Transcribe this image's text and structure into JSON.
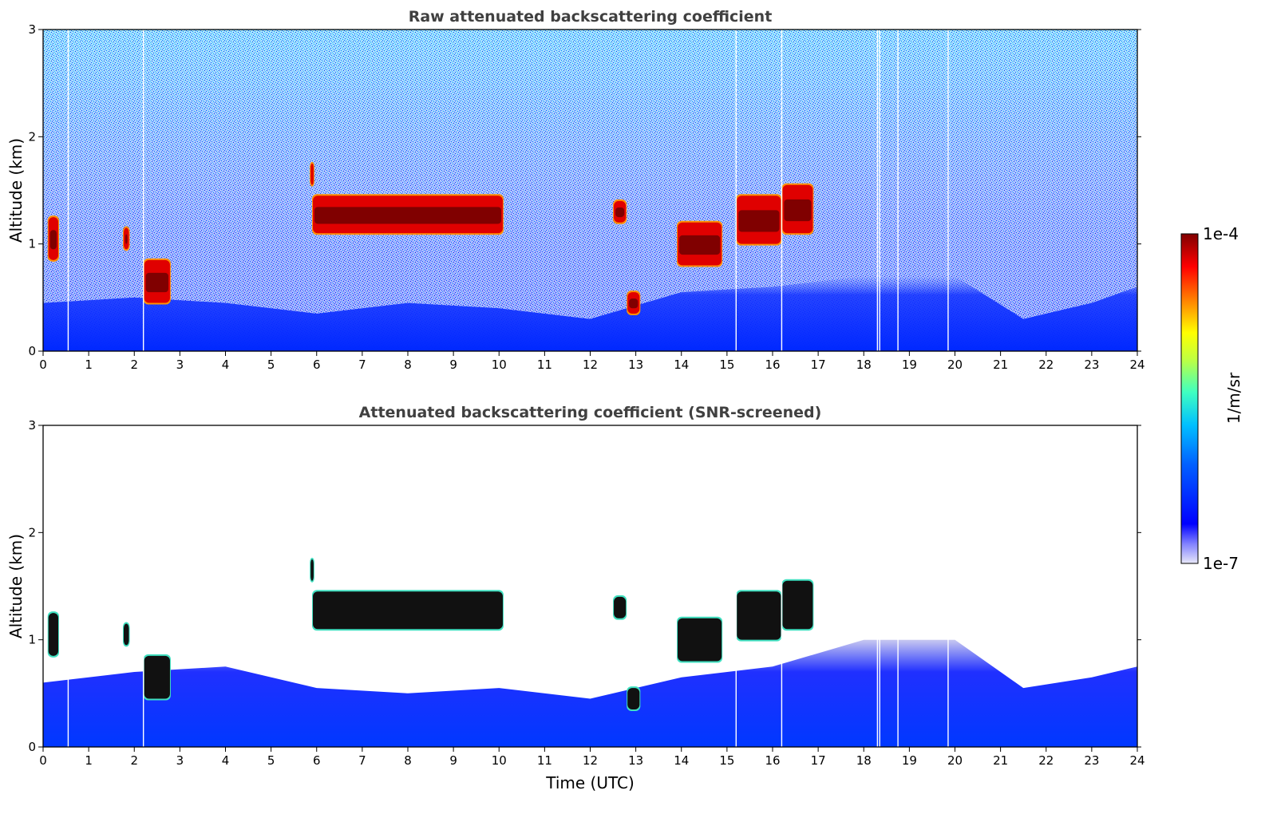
{
  "chart_data": [
    {
      "type": "heatmap",
      "title": "Raw attenuated backscattering coefficient",
      "xlabel": "",
      "ylabel": "Altitude (km)",
      "xlim": [
        0,
        24
      ],
      "ylim": [
        0,
        3
      ],
      "x_ticks": [
        "0",
        "1",
        "2",
        "3",
        "4",
        "5",
        "6",
        "7",
        "8",
        "9",
        "10",
        "11",
        "12",
        "13",
        "14",
        "15",
        "16",
        "17",
        "18",
        "19",
        "20",
        "21",
        "22",
        "23",
        "24"
      ],
      "y_ticks": [
        "0",
        "1",
        "2",
        "3"
      ],
      "variable": "attenuated backscattering coefficient",
      "screening": "raw",
      "gap_times_utc": [
        0.55,
        2.2,
        15.2,
        16.2,
        18.3,
        18.35,
        18.75,
        19.85
      ],
      "boundary_layer_top_km": [
        [
          0,
          0.45
        ],
        [
          2,
          0.5
        ],
        [
          4,
          0.45
        ],
        [
          6,
          0.35
        ],
        [
          8,
          0.45
        ],
        [
          10,
          0.4
        ],
        [
          12,
          0.3
        ],
        [
          14,
          0.55
        ],
        [
          16,
          0.6
        ],
        [
          18,
          0.7
        ],
        [
          20,
          0.7
        ],
        [
          21.5,
          0.3
        ],
        [
          23,
          0.45
        ],
        [
          24,
          0.6
        ]
      ],
      "cloud_layers": [
        {
          "t_start": 0.1,
          "t_end": 0.35,
          "base_km": 0.85,
          "top_km": 1.25
        },
        {
          "t_start": 1.75,
          "t_end": 1.9,
          "base_km": 0.95,
          "top_km": 1.15
        },
        {
          "t_start": 2.2,
          "t_end": 2.8,
          "base_km": 0.45,
          "top_km": 0.85
        },
        {
          "t_start": 5.85,
          "t_end": 5.95,
          "base_km": 1.55,
          "top_km": 1.75
        },
        {
          "t_start": 5.9,
          "t_end": 10.1,
          "base_km": 1.1,
          "top_km": 1.45
        },
        {
          "t_start": 12.5,
          "t_end": 12.8,
          "base_km": 1.2,
          "top_km": 1.4
        },
        {
          "t_start": 12.8,
          "t_end": 13.1,
          "base_km": 0.35,
          "top_km": 0.55
        },
        {
          "t_start": 13.9,
          "t_end": 14.9,
          "base_km": 0.8,
          "top_km": 1.2
        },
        {
          "t_start": 15.2,
          "t_end": 16.2,
          "base_km": 1.0,
          "top_km": 1.45
        },
        {
          "t_start": 16.2,
          "t_end": 16.9,
          "base_km": 1.1,
          "top_km": 1.55
        }
      ]
    },
    {
      "type": "heatmap",
      "title": "Attenuated backscattering coefficient (SNR-screened)",
      "xlabel": "Time (UTC)",
      "ylabel": "Altitude (km)",
      "xlim": [
        0,
        24
      ],
      "ylim": [
        0,
        3
      ],
      "x_ticks": [
        "0",
        "1",
        "2",
        "3",
        "4",
        "5",
        "6",
        "7",
        "8",
        "9",
        "10",
        "11",
        "12",
        "13",
        "14",
        "15",
        "16",
        "17",
        "18",
        "19",
        "20",
        "21",
        "22",
        "23",
        "24"
      ],
      "y_ticks": [
        "0",
        "1",
        "2",
        "3"
      ],
      "variable": "attenuated backscattering coefficient",
      "screening": "SNR-screened",
      "gap_times_utc": [
        0.55,
        2.2,
        15.2,
        16.2,
        18.3,
        18.35,
        18.75,
        19.85
      ],
      "boundary_layer_top_km": [
        [
          0,
          0.6
        ],
        [
          2,
          0.7
        ],
        [
          4,
          0.75
        ],
        [
          6,
          0.55
        ],
        [
          8,
          0.5
        ],
        [
          10,
          0.55
        ],
        [
          12,
          0.45
        ],
        [
          14,
          0.65
        ],
        [
          16,
          0.75
        ],
        [
          18,
          1.0
        ],
        [
          20,
          1.0
        ],
        [
          21.5,
          0.55
        ],
        [
          23,
          0.65
        ],
        [
          24,
          0.75
        ]
      ],
      "cloud_layers": [
        {
          "t_start": 0.1,
          "t_end": 0.35,
          "base_km": 0.85,
          "top_km": 1.25
        },
        {
          "t_start": 1.75,
          "t_end": 1.9,
          "base_km": 0.95,
          "top_km": 1.15
        },
        {
          "t_start": 2.2,
          "t_end": 2.8,
          "base_km": 0.45,
          "top_km": 0.85
        },
        {
          "t_start": 5.85,
          "t_end": 5.95,
          "base_km": 1.55,
          "top_km": 1.75
        },
        {
          "t_start": 5.9,
          "t_end": 10.1,
          "base_km": 1.1,
          "top_km": 1.45
        },
        {
          "t_start": 12.5,
          "t_end": 12.8,
          "base_km": 1.2,
          "top_km": 1.4
        },
        {
          "t_start": 12.8,
          "t_end": 13.1,
          "base_km": 0.35,
          "top_km": 0.55
        },
        {
          "t_start": 13.9,
          "t_end": 14.9,
          "base_km": 0.8,
          "top_km": 1.2
        },
        {
          "t_start": 15.2,
          "t_end": 16.2,
          "base_km": 1.0,
          "top_km": 1.45
        },
        {
          "t_start": 16.2,
          "t_end": 16.9,
          "base_km": 1.1,
          "top_km": 1.55
        }
      ]
    }
  ],
  "colorbar": {
    "label": "1/m/sr",
    "max_label": "1e-4",
    "min_label": "1e-7",
    "scale": "log",
    "colormap": "jet",
    "colors": [
      "#e8e8f8",
      "#8080ff",
      "#0000ff",
      "#0060ff",
      "#00c0ff",
      "#40ffc0",
      "#c0ff40",
      "#ffff00",
      "#ff8000",
      "#ff0000",
      "#800000"
    ]
  }
}
